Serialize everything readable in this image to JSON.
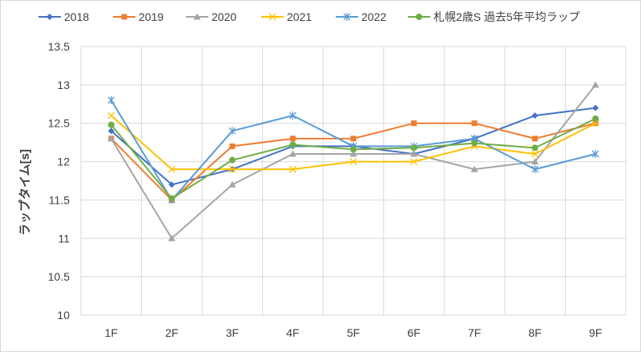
{
  "chart_data": {
    "type": "line",
    "title": "",
    "ylabel": "ラップタイム[s]",
    "xlabel": "",
    "categories": [
      "1F",
      "2F",
      "3F",
      "4F",
      "5F",
      "6F",
      "7F",
      "8F",
      "9F"
    ],
    "ylim": [
      10,
      13.5
    ],
    "yticks": [
      "10",
      "10.5",
      "11",
      "11.5",
      "12",
      "12.5",
      "13",
      "13.5"
    ],
    "grid": true,
    "legend_position": "top",
    "series": [
      {
        "name": "2018",
        "color": "#4472c4",
        "marker": "diamond",
        "values": [
          12.4,
          11.7,
          11.9,
          12.2,
          12.2,
          12.1,
          12.3,
          12.6,
          12.7
        ]
      },
      {
        "name": "2019",
        "color": "#ed7d31",
        "marker": "square",
        "values": [
          12.3,
          11.5,
          12.2,
          12.3,
          12.3,
          12.5,
          12.5,
          12.3,
          12.5
        ]
      },
      {
        "name": "2020",
        "color": "#a5a5a5",
        "marker": "triangle",
        "values": [
          12.3,
          11.0,
          11.7,
          12.1,
          12.1,
          12.1,
          11.9,
          12.0,
          13.0
        ]
      },
      {
        "name": "2021",
        "color": "#ffc000",
        "marker": "x",
        "values": [
          12.6,
          11.9,
          11.9,
          11.9,
          12.0,
          12.0,
          12.2,
          12.1,
          12.5
        ]
      },
      {
        "name": "2022",
        "color": "#5b9bd5",
        "marker": "star",
        "values": [
          12.8,
          11.5,
          12.4,
          12.6,
          12.2,
          12.2,
          12.3,
          11.9,
          12.1
        ]
      },
      {
        "name": "札幌2歳S 過去5年平均ラップ",
        "color": "#70ad47",
        "marker": "circle",
        "values": [
          12.48,
          11.52,
          12.02,
          12.22,
          12.16,
          12.18,
          12.24,
          12.18,
          12.56
        ]
      }
    ]
  }
}
